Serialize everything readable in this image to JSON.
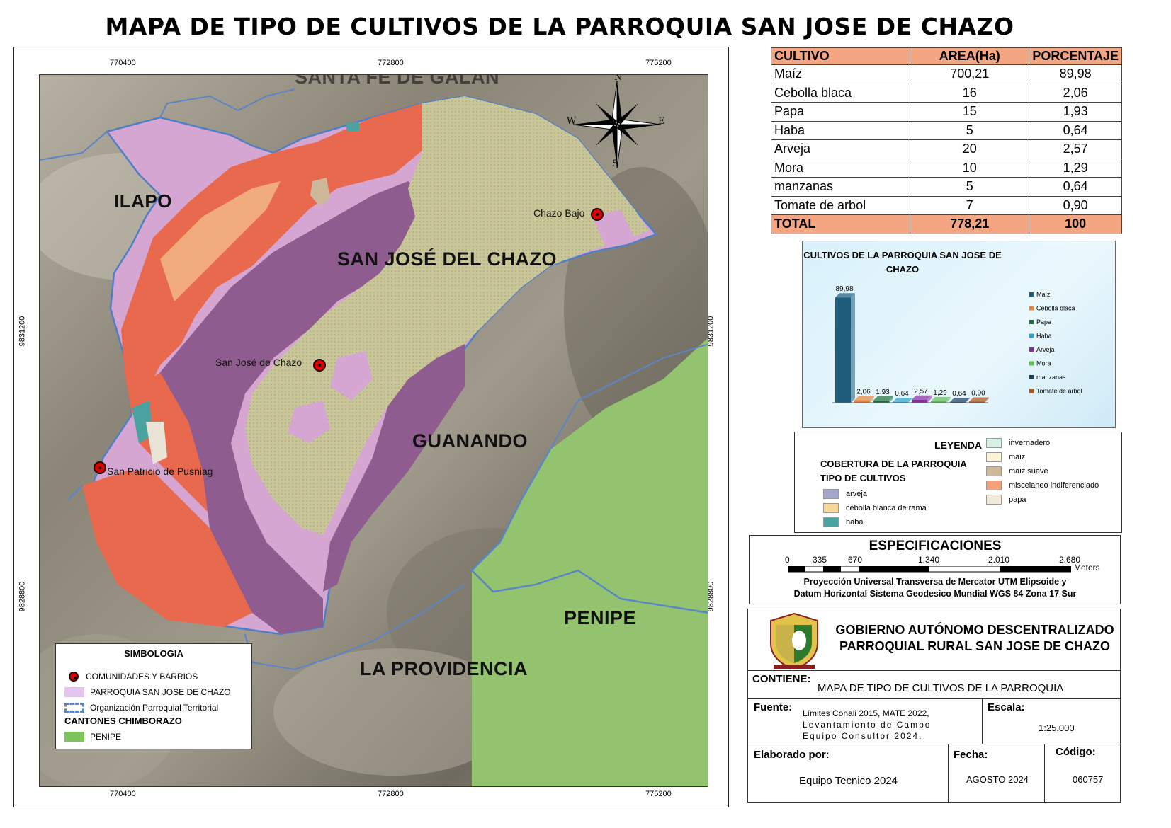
{
  "title": "MAPA DE TIPO DE CULTIVOS DE LA PARROQUIA SAN JOSE DE CHAZO",
  "map": {
    "ticks_x": [
      "770400",
      "772800",
      "775200"
    ],
    "ticks_y": [
      "9831200",
      "9828800"
    ],
    "places": {
      "north": "SANTA FE DE GALAN",
      "ilapo": "ILAPO",
      "parroquia": "SAN JOSÉ DEL CHAZO",
      "guanando": "GUANANDO",
      "penipe": "PENIPE",
      "providencia": "LA PROVIDENCIA"
    },
    "communities": {
      "chazo_bajo": "Chazo Bajo",
      "san_jose": "San José de Chazo",
      "san_patricio": "San Patricio de Pusniag"
    },
    "compass": {
      "n": "N",
      "s": "S",
      "e": "E",
      "w": "W"
    }
  },
  "simbologia": {
    "title": "SIMBOLOGIA",
    "comunidades": "COMUNIDADES Y BARRIOS",
    "parroquia": "PARROQUIA SAN JOSE DE CHAZO",
    "organizacion": "Organización Parroquial Territorial",
    "cantones_title": "CANTONES CHIMBORAZO",
    "penipe": "PENIPE"
  },
  "table": {
    "headers": [
      "CULTIVO",
      "AREA(Ha)",
      "PORCENTAJE"
    ],
    "rows": [
      [
        "Maíz",
        "700,21",
        "89,98"
      ],
      [
        "Cebolla blaca",
        "16",
        "2,06"
      ],
      [
        "Papa",
        "15",
        "1,93"
      ],
      [
        "Haba",
        "5",
        "0,64"
      ],
      [
        "Arveja",
        "20",
        "2,57"
      ],
      [
        "Mora",
        "10",
        "1,29"
      ],
      [
        "manzanas",
        "5",
        "0,64"
      ],
      [
        "Tomate de arbol",
        "7",
        "0,90"
      ]
    ],
    "total": [
      "TOTAL",
      "778,21",
      "100"
    ]
  },
  "chart_data": {
    "type": "bar",
    "title": "CULTIVOS DE LA PARROQUIA SAN JOSE DE CHAZO",
    "categories": [
      "Maíz",
      "Cebolla blaca",
      "Papa",
      "Haba",
      "Arveja",
      "Mora",
      "manzanas",
      "Tomate de arbol"
    ],
    "values": [
      89.98,
      2.06,
      1.93,
      0.64,
      2.57,
      1.29,
      0.64,
      0.9
    ],
    "value_labels": [
      "89,98",
      "2,06",
      "1,93",
      "0,64",
      "2,57",
      "1,29",
      "0,64",
      "0,90"
    ],
    "colors": [
      "#1f5c7a",
      "#e8823a",
      "#1c6b3a",
      "#2aa1c9",
      "#8a2aa0",
      "#5bbf4e",
      "#1d3f5e",
      "#b5501e"
    ],
    "legend": "right",
    "ylim": [
      0,
      100
    ]
  },
  "legend": {
    "title": "LEYENDA",
    "cobertura": "COBERTURA DE LA PARROQUIA",
    "tipo": "TIPO DE CULTIVOS",
    "items_left": [
      {
        "label": "arveja",
        "color": "#a6a6c8"
      },
      {
        "label": "cebolla blanca de rama",
        "color": "#f6d89a"
      },
      {
        "label": "haba",
        "color": "#4aa3a0"
      }
    ],
    "items_right": [
      {
        "label": "invernadero",
        "color": "#d7f0e4"
      },
      {
        "label": "maiz",
        "color": "#fbf3d8"
      },
      {
        "label": "maiz suave",
        "color": "#cdb89a"
      },
      {
        "label": "miscelaneo indiferenciado",
        "color": "#f5a07a"
      },
      {
        "label": "papa",
        "color": "#f1ead8"
      }
    ]
  },
  "specs": {
    "title": "ESPECIFICACIONES",
    "scale_labels": [
      "0",
      "335",
      "670",
      "1.340",
      "2.010",
      "2.680"
    ],
    "units": "Meters",
    "proj_line1": "Proyección Universal Transversa de Mercator UTM Elipsoide y",
    "proj_line2": "Datum Horizontal Sistema Geodesico Mundial WGS 84 Zona 17 Sur"
  },
  "info": {
    "org_line1": "GOBIERNO AUTÓNOMO DESCENTRALIZADO",
    "org_line2": "PARROQUIAL RURAL SAN JOSE DE CHAZO",
    "contiene_k": "CONTIENE:",
    "contiene_v": "MAPA DE TIPO DE CULTIVOS DE LA PARROQUIA",
    "fuente_k": "Fuente:",
    "fuente_v1": "Límites Conali 2015, MATE 2022,",
    "fuente_v2": "Levantamiento de Campo",
    "fuente_v3": "Equipo Consultor 2024.",
    "escala_k": "Escala:",
    "escala_v": "1:25.000",
    "elaborado_k": "Elaborado por:",
    "elaborado_v": "Equipo Tecnico 2024",
    "fecha_k": "Fecha:",
    "fecha_v": "AGOSTO 2024",
    "codigo_k": "Código:",
    "codigo_v": "060757"
  }
}
